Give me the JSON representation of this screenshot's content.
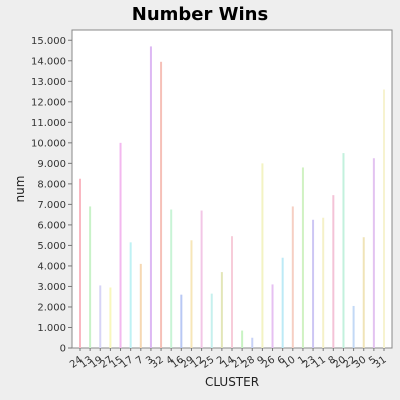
{
  "chart_data": {
    "type": "bar",
    "title": "Number Wins",
    "xlabel": "CLUSTER",
    "ylabel": "num",
    "ylim": [
      0,
      15500
    ],
    "yticks": [
      0,
      1000,
      2000,
      3000,
      4000,
      5000,
      6000,
      7000,
      8000,
      9000,
      10000,
      11000,
      12000,
      13000,
      14000,
      15000
    ],
    "ytick_labels": [
      "0",
      "1.000",
      "2.000",
      "3.000",
      "4.000",
      "5.000",
      "6.000",
      "7.000",
      "8.000",
      "9.000",
      "10.000",
      "11.000",
      "12.000",
      "13.000",
      "14.000",
      "15.000"
    ],
    "grid": false,
    "legend": "none",
    "categories": [
      "24",
      "13",
      "19",
      "27",
      "15",
      "17",
      "7",
      "3",
      "32",
      "4",
      "16",
      "29",
      "12",
      "25",
      "2",
      "14",
      "21",
      "28",
      "9",
      "26",
      "6",
      "10",
      "1",
      "23",
      "11",
      "8",
      "20",
      "22",
      "30",
      "5",
      "31"
    ],
    "values": [
      8250,
      6900,
      3050,
      2950,
      10000,
      5150,
      4100,
      14700,
      13950,
      6750,
      2600,
      5250,
      6700,
      2650,
      3700,
      5450,
      850,
      500,
      9000,
      3100,
      4400,
      6900,
      8800,
      6250,
      6350,
      7450,
      9500,
      2050,
      5400,
      9250,
      12600
    ],
    "colors": [
      "#f9b8c2",
      "#c8f2c8",
      "#d6d4f6",
      "#f8f7bc",
      "#f3b8ef",
      "#bff1f4",
      "#f6d8b3",
      "#ddb8f4",
      "#f6c0b8",
      "#c8f4d6",
      "#b8c8f4",
      "#f7e6b8",
      "#f2c6e6",
      "#c6f0ee",
      "#e3e6b8",
      "#f7ccd9",
      "#c8f3c3",
      "#c8d2f7",
      "#f3f3c3",
      "#e6c0f2",
      "#bdeaf6",
      "#f6cfc3",
      "#d0f2c3",
      "#cdc6f4",
      "#f5f1c8",
      "#f4c3d7",
      "#c3f1dd",
      "#c3d9f6",
      "#f0e4b8",
      "#e3c3f1",
      "#f7f3d0"
    ]
  }
}
